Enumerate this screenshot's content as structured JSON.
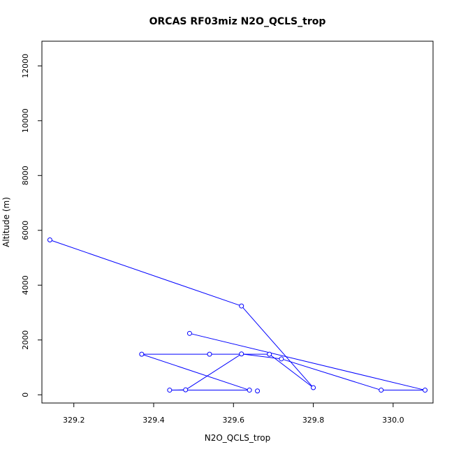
{
  "chart_data": {
    "type": "line",
    "title": "ORCAS RF03miz N2O_QCLS_trop",
    "xlabel": "N2O_QCLS_trop",
    "ylabel": "Altitude (m)",
    "xlim": [
      329.12,
      330.1
    ],
    "ylim": [
      -300,
      12900
    ],
    "x_ticks": [
      329.2,
      329.4,
      329.6,
      329.8,
      330.0
    ],
    "x_tick_labels": [
      "329.2",
      "329.4",
      "329.6",
      "329.8",
      "330.0"
    ],
    "y_ticks": [
      0,
      2000,
      4000,
      6000,
      8000,
      10000,
      12000
    ],
    "y_tick_labels": [
      "0",
      "2000",
      "4000",
      "6000",
      "8000",
      "10000",
      "12000"
    ],
    "grid": false,
    "series": [
      {
        "color": "#0000ff",
        "marker": "open-circle",
        "points": [
          {
            "x": 329.14,
            "y": 5650
          },
          {
            "x": 329.62,
            "y": 3240
          },
          {
            "x": 329.8,
            "y": 260
          },
          {
            "x": 329.69,
            "y": 1480
          },
          {
            "x": 329.54,
            "y": 1480
          },
          {
            "x": 329.37,
            "y": 1480
          },
          {
            "x": 329.64,
            "y": 170
          },
          {
            "x": 329.44,
            "y": 170
          },
          {
            "x": 329.48,
            "y": 180
          },
          {
            "x": 329.62,
            "y": 1490
          },
          {
            "x": 329.72,
            "y": 1310
          },
          {
            "x": 329.97,
            "y": 170
          },
          {
            "x": 330.08,
            "y": 170
          },
          {
            "x": 329.49,
            "y": 2240
          }
        ],
        "extra_points": [
          {
            "x": 329.66,
            "y": 140
          }
        ]
      }
    ]
  }
}
